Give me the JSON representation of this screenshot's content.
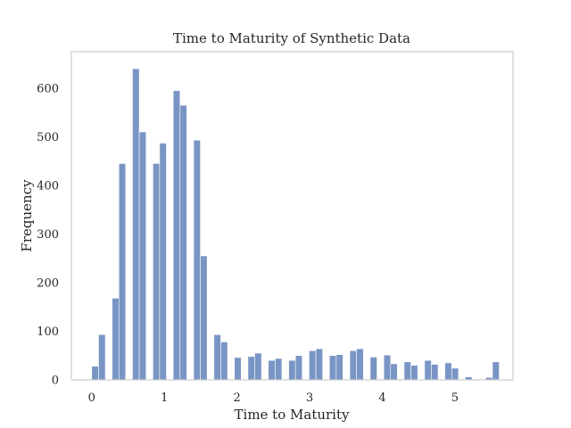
{
  "chart_data": {
    "type": "bar",
    "title": "Time to Maturity of Synthetic Data",
    "xlabel": "Time to Maturity",
    "ylabel": "Frequency",
    "xlim": [
      -0.28,
      5.8
    ],
    "ylim": [
      0,
      675
    ],
    "x_ticks": [
      0,
      1,
      2,
      3,
      4,
      5
    ],
    "y_ticks": [
      0,
      100,
      200,
      300,
      400,
      500,
      600
    ],
    "grid": false,
    "bar_color": "#4c72b0",
    "bin_width": 0.0935,
    "bin_starts": [
      0.0,
      0.094,
      0.187,
      0.281,
      0.374,
      0.468,
      0.561,
      0.655,
      0.748,
      0.842,
      0.935,
      1.029,
      1.122,
      1.216,
      1.309,
      1.403,
      1.496,
      1.59,
      1.683,
      1.777,
      1.87,
      1.964,
      2.057,
      2.151,
      2.244,
      2.338,
      2.431,
      2.525,
      2.618,
      2.712,
      2.805,
      2.899,
      2.992,
      3.086,
      3.179,
      3.273,
      3.366,
      3.46,
      3.553,
      3.647,
      3.74,
      3.834,
      3.927,
      4.021,
      4.114,
      4.208,
      4.301,
      4.395,
      4.488,
      4.582,
      4.675,
      4.769,
      4.862,
      4.956,
      5.049,
      5.143,
      5.236,
      5.33,
      5.423,
      5.517
    ],
    "values": [
      28,
      93,
      0,
      168,
      445,
      0,
      640,
      510,
      0,
      445,
      487,
      0,
      595,
      565,
      0,
      493,
      255,
      0,
      93,
      78,
      0,
      46,
      0,
      48,
      55,
      0,
      40,
      44,
      0,
      40,
      50,
      0,
      60,
      64,
      0,
      50,
      52,
      0,
      60,
      64,
      0,
      47,
      0,
      51,
      33,
      0,
      37,
      30,
      0,
      40,
      32,
      0,
      35,
      24,
      0,
      6,
      0,
      0,
      5,
      37
    ]
  }
}
